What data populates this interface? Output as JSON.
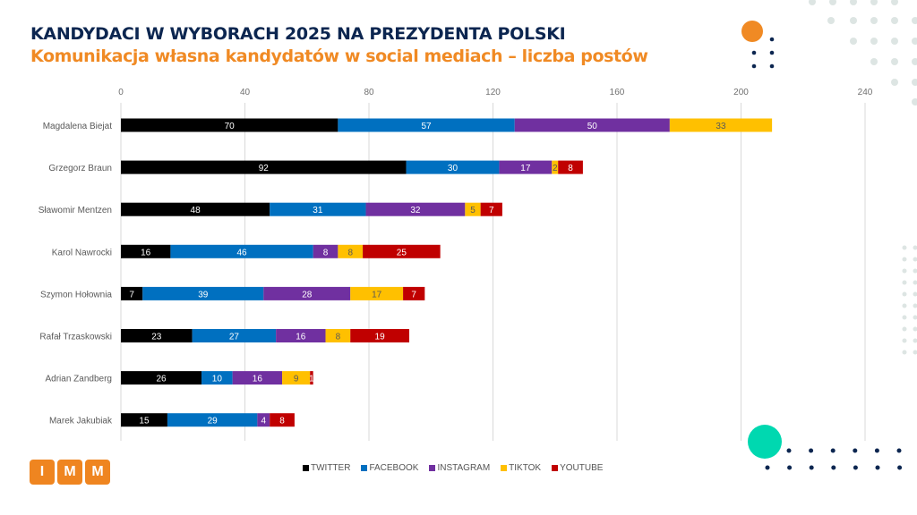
{
  "header": {
    "title": "KANDYDACI W WYBORACH 2025 NA PREZYDENTA POLSKI",
    "subtitle": "Komunikacja własna kandydatów w social mediach – liczba postów"
  },
  "logo": {
    "letters": [
      "I",
      "M",
      "M"
    ]
  },
  "colors": {
    "title": "#0c2650",
    "subtitle": "#f08a24",
    "twitter": "#000000",
    "facebook": "#0070c0",
    "instagram": "#7030a0",
    "tiktok": "#ffc000",
    "youtube": "#c00000",
    "accent_orange": "#f08a24",
    "accent_teal": "#00d8b0"
  },
  "chart_data": {
    "type": "bar",
    "orientation": "horizontal",
    "stacked": true,
    "title": "KANDYDACI W WYBORACH 2025 NA PREZYDENTA POLSKI",
    "subtitle": "Komunikacja własna kandydatów w social mediach – liczba postów",
    "xlabel": "",
    "ylabel": "",
    "xlim": [
      0,
      240
    ],
    "xticks": [
      0,
      40,
      80,
      120,
      160,
      200,
      240
    ],
    "grid": true,
    "legend_position": "bottom",
    "categories": [
      "Magdalena Biejat",
      "Grzegorz Braun",
      "Sławomir Mentzen",
      "Karol Nawrocki",
      "Szymon Hołownia",
      "Rafał Trzaskowski",
      "Adrian Zandberg",
      "Marek Jakubiak"
    ],
    "series": [
      {
        "name": "TWITTER",
        "color": "#000000",
        "label_color": "#ffffff",
        "values": [
          70,
          92,
          48,
          16,
          7,
          23,
          26,
          15
        ]
      },
      {
        "name": "FACEBOOK",
        "color": "#0070c0",
        "label_color": "#ffffff",
        "values": [
          57,
          30,
          31,
          46,
          39,
          27,
          10,
          29
        ]
      },
      {
        "name": "INSTAGRAM",
        "color": "#7030a0",
        "label_color": "#ffffff",
        "values": [
          50,
          17,
          32,
          8,
          28,
          16,
          16,
          4
        ]
      },
      {
        "name": "TIKTOK",
        "color": "#ffc000",
        "label_color": "#595959",
        "values": [
          33,
          2,
          5,
          8,
          17,
          8,
          9,
          0
        ]
      },
      {
        "name": "YOUTUBE",
        "color": "#c00000",
        "label_color": "#ffffff",
        "values": [
          0,
          8,
          7,
          25,
          7,
          19,
          1,
          8
        ]
      }
    ]
  }
}
